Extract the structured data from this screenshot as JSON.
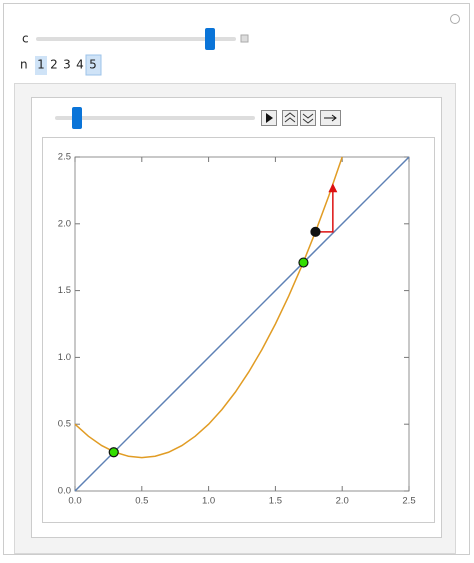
{
  "controls": {
    "c_label": "c",
    "n_label": "n",
    "n_options": [
      "1",
      "2",
      "3",
      "4",
      "5"
    ]
  },
  "chart_data": {
    "type": "line",
    "xlim": [
      0,
      2.5
    ],
    "ylim": [
      0,
      2.5
    ],
    "xticks": [
      {
        "value": 0,
        "label": "0.0"
      },
      {
        "value": 0.5,
        "label": "0.5"
      },
      {
        "value": 1,
        "label": "1.0"
      },
      {
        "value": 1.5,
        "label": "1.5"
      },
      {
        "value": 2,
        "label": "2.0"
      },
      {
        "value": 2.5,
        "label": "2.5"
      }
    ],
    "yticks": [
      {
        "value": 0,
        "label": "0.0"
      },
      {
        "value": 0.5,
        "label": "0.5"
      },
      {
        "value": 1,
        "label": "1.0"
      },
      {
        "value": 1.5,
        "label": "1.5"
      },
      {
        "value": 2,
        "label": "2.0"
      },
      {
        "value": 2.5,
        "label": "2.5"
      }
    ],
    "series": [
      {
        "color": "#5e81b5",
        "x": [
          0,
          2.5
        ],
        "values": [
          0,
          2.5
        ]
      },
      {
        "color": "#e19c24",
        "x": [
          0,
          0.1,
          0.2,
          0.3,
          0.4,
          0.5,
          0.6,
          0.7,
          0.8,
          0.9,
          1.0,
          1.1,
          1.2,
          1.3,
          1.4,
          1.5,
          1.6,
          1.7,
          1.8,
          1.9,
          2.0
        ],
        "values": [
          0.5,
          0.41,
          0.34,
          0.29,
          0.26,
          0.25,
          0.26,
          0.29,
          0.34,
          0.41,
          0.5,
          0.61,
          0.74,
          0.89,
          1.06,
          1.25,
          1.46,
          1.69,
          1.94,
          2.21,
          2.5
        ]
      },
      {
        "color": "#dd1111",
        "x": [
          1.8,
          1.93,
          1.93
        ],
        "values": [
          1.94,
          1.94,
          2.29
        ],
        "arrow": true
      },
      {
        "color": "#33dd00",
        "marker": "circle",
        "x": [
          0.29,
          1.71
        ],
        "values": [
          0.29,
          1.71
        ]
      },
      {
        "color": "#111111",
        "marker": "circle",
        "x": [
          1.8
        ],
        "values": [
          1.94
        ]
      }
    ]
  }
}
